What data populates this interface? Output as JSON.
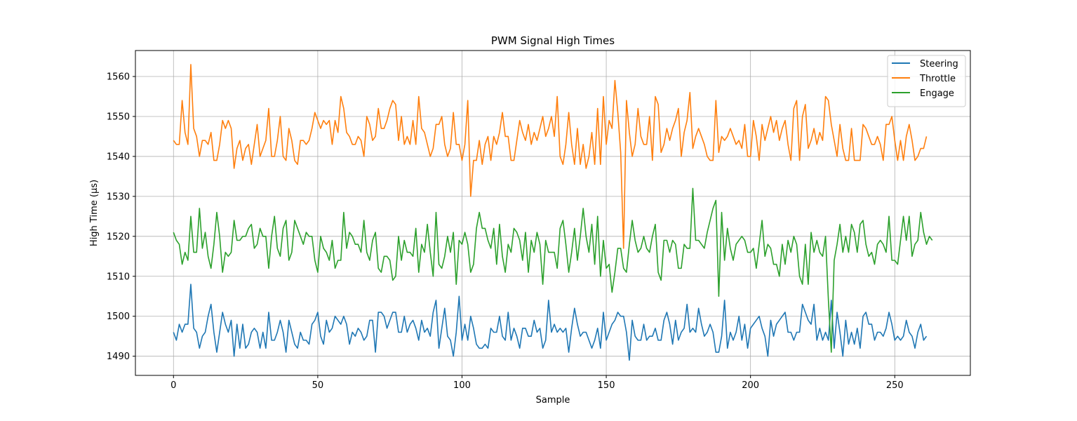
{
  "chart_data": {
    "type": "line",
    "title": "PWM Signal High Times",
    "xlabel": "Sample",
    "ylabel": "High Time (µs)",
    "xlim": [
      -13.2,
      276.2
    ],
    "ylim": [
      1485.2,
      1566.5
    ],
    "x_ticks": [
      0,
      50,
      100,
      150,
      200,
      250
    ],
    "y_ticks": [
      1490,
      1500,
      1510,
      1520,
      1530,
      1540,
      1550,
      1560
    ],
    "grid": true,
    "legend_position": "top-right",
    "series": [
      {
        "name": "Steering",
        "color": "#1f77b4",
        "values": [
          1496,
          1494,
          1498,
          1496,
          1498,
          1498,
          1508,
          1497,
          1496,
          1492,
          1495,
          1496,
          1500,
          1503,
          1496,
          1491,
          1496,
          1501,
          1498,
          1496,
          1499,
          1490,
          1498,
          1492,
          1498,
          1492,
          1493,
          1496,
          1497,
          1496,
          1492,
          1496,
          1492,
          1501,
          1494,
          1494,
          1496,
          1499,
          1496,
          1491,
          1499,
          1496,
          1493,
          1492,
          1496,
          1494,
          1494,
          1493,
          1498,
          1499,
          1501,
          1495,
          1493,
          1499,
          1496,
          1497,
          1500,
          1499,
          1498,
          1500,
          1498,
          1493,
          1496,
          1495,
          1497,
          1496,
          1494,
          1495,
          1499,
          1499,
          1491,
          1501,
          1501,
          1500,
          1497,
          1499,
          1501,
          1501,
          1496,
          1496,
          1500,
          1496,
          1498,
          1499,
          1497,
          1494,
          1499,
          1496,
          1497,
          1495,
          1501,
          1504,
          1492,
          1497,
          1502,
          1495,
          1494,
          1490,
          1496,
          1505,
          1494,
          1498,
          1494,
          1500,
          1497,
          1493,
          1492,
          1492,
          1493,
          1492,
          1497,
          1496,
          1496,
          1500,
          1495,
          1494,
          1501,
          1494,
          1497,
          1495,
          1492,
          1497,
          1497,
          1495,
          1495,
          1499,
          1496,
          1497,
          1492,
          1494,
          1504,
          1496,
          1498,
          1496,
          1497,
          1496,
          1497,
          1491,
          1497,
          1502,
          1498,
          1495,
          1496,
          1496,
          1494,
          1492,
          1494,
          1497,
          1492,
          1501,
          1494,
          1496,
          1498,
          1499,
          1501,
          1500,
          1500,
          1496,
          1489,
          1499,
          1495,
          1494,
          1494,
          1498,
          1494,
          1495,
          1495,
          1497,
          1494,
          1494,
          1499,
          1501,
          1498,
          1493,
          1499,
          1494,
          1496,
          1497,
          1503,
          1496,
          1497,
          1496,
          1502,
          1498,
          1495,
          1496,
          1498,
          1496,
          1491,
          1491,
          1495,
          1504,
          1492,
          1496,
          1494,
          1496,
          1500,
          1494,
          1498,
          1492,
          1497,
          1498,
          1499,
          1500,
          1497,
          1495,
          1490,
          1499,
          1495,
          1498,
          1499,
          1500,
          1501,
          1496,
          1496,
          1494,
          1496,
          1496,
          1503,
          1501,
          1499,
          1498,
          1503,
          1494,
          1497,
          1494,
          1496,
          1494,
          1504,
          1492,
          1501,
          1496,
          1490,
          1499,
          1493,
          1496,
          1493,
          1497,
          1492,
          1500,
          1501,
          1498,
          1498,
          1494,
          1496,
          1496,
          1495,
          1497,
          1501,
          1498,
          1494,
          1495,
          1494,
          1495,
          1499,
          1496,
          1495,
          1492,
          1496,
          1498,
          1494,
          1495
        ]
      },
      {
        "name": "Throttle",
        "color": "#ff7f0e",
        "values": [
          1544,
          1543,
          1543,
          1554,
          1546,
          1543,
          1563,
          1547,
          1545,
          1540,
          1544,
          1544,
          1543,
          1546,
          1539,
          1539,
          1543,
          1549,
          1547,
          1549,
          1547,
          1537,
          1542,
          1544,
          1539,
          1542,
          1543,
          1538,
          1543,
          1548,
          1540,
          1542,
          1544,
          1552,
          1540,
          1540,
          1544,
          1550,
          1540,
          1539,
          1547,
          1544,
          1539,
          1538,
          1544,
          1544,
          1543,
          1544,
          1547,
          1551,
          1549,
          1547,
          1549,
          1548,
          1549,
          1543,
          1549,
          1546,
          1555,
          1552,
          1546,
          1545,
          1543,
          1543,
          1545,
          1544,
          1540,
          1550,
          1548,
          1544,
          1545,
          1552,
          1547,
          1547,
          1549,
          1552,
          1554,
          1553,
          1544,
          1550,
          1543,
          1545,
          1543,
          1549,
          1543,
          1555,
          1547,
          1546,
          1543,
          1540,
          1542,
          1548,
          1548,
          1550,
          1543,
          1540,
          1542,
          1551,
          1543,
          1543,
          1539,
          1543,
          1554,
          1530,
          1539,
          1539,
          1544,
          1538,
          1543,
          1545,
          1539,
          1545,
          1543,
          1546,
          1551,
          1545,
          1545,
          1539,
          1539,
          1544,
          1549,
          1546,
          1544,
          1548,
          1543,
          1546,
          1544,
          1547,
          1550,
          1545,
          1547,
          1550,
          1545,
          1555,
          1540,
          1538,
          1543,
          1551,
          1543,
          1538,
          1547,
          1538,
          1543,
          1537,
          1540,
          1546,
          1538,
          1552,
          1538,
          1555,
          1543,
          1549,
          1547,
          1559,
          1551,
          1541,
          1517,
          1554,
          1546,
          1540,
          1543,
          1552,
          1545,
          1543,
          1543,
          1550,
          1539,
          1555,
          1553,
          1541,
          1543,
          1547,
          1544,
          1547,
          1549,
          1552,
          1540,
          1546,
          1549,
          1556,
          1542,
          1545,
          1547,
          1545,
          1543,
          1540,
          1539,
          1539,
          1554,
          1541,
          1545,
          1544,
          1545,
          1547,
          1545,
          1543,
          1544,
          1542,
          1548,
          1540,
          1540,
          1549,
          1545,
          1539,
          1548,
          1544,
          1547,
          1550,
          1546,
          1549,
          1544,
          1547,
          1549,
          1543,
          1539,
          1552,
          1554,
          1539,
          1550,
          1553,
          1542,
          1544,
          1547,
          1543,
          1546,
          1544,
          1555,
          1554,
          1548,
          1544,
          1540,
          1548,
          1542,
          1539,
          1539,
          1547,
          1539,
          1539,
          1539,
          1548,
          1547,
          1545,
          1543,
          1543,
          1545,
          1543,
          1539,
          1548,
          1548,
          1550,
          1544,
          1539,
          1544,
          1539,
          1545,
          1548,
          1544,
          1539,
          1540,
          1542,
          1542,
          1545
        ]
      },
      {
        "name": "Engage",
        "color": "#2ca02c",
        "values": [
          1521,
          1519,
          1518,
          1513,
          1516,
          1514,
          1525,
          1516,
          1516,
          1527,
          1517,
          1521,
          1515,
          1512,
          1518,
          1526,
          1520,
          1511,
          1516,
          1515,
          1516,
          1524,
          1519,
          1519,
          1520,
          1520,
          1522,
          1523,
          1517,
          1518,
          1522,
          1520,
          1520,
          1512,
          1520,
          1525,
          1517,
          1515,
          1522,
          1524,
          1514,
          1516,
          1524,
          1522,
          1520,
          1518,
          1521,
          1520,
          1520,
          1514,
          1511,
          1520,
          1517,
          1516,
          1514,
          1519,
          1512,
          1514,
          1514,
          1526,
          1517,
          1521,
          1520,
          1518,
          1518,
          1516,
          1524,
          1516,
          1514,
          1519,
          1521,
          1512,
          1511,
          1515,
          1515,
          1514,
          1509,
          1510,
          1520,
          1514,
          1519,
          1516,
          1516,
          1515,
          1522,
          1511,
          1518,
          1516,
          1523,
          1516,
          1510,
          1526,
          1513,
          1512,
          1515,
          1520,
          1516,
          1521,
          1508,
          1519,
          1518,
          1521,
          1518,
          1511,
          1513,
          1522,
          1526,
          1522,
          1522,
          1519,
          1517,
          1522,
          1513,
          1523,
          1515,
          1511,
          1518,
          1516,
          1522,
          1521,
          1519,
          1514,
          1521,
          1511,
          1519,
          1516,
          1521,
          1518,
          1508,
          1519,
          1516,
          1516,
          1516,
          1512,
          1522,
          1524,
          1518,
          1511,
          1516,
          1522,
          1514,
          1520,
          1527,
          1520,
          1516,
          1523,
          1513,
          1525,
          1510,
          1519,
          1512,
          1513,
          1506,
          1511,
          1517,
          1517,
          1512,
          1511,
          1518,
          1524,
          1519,
          1516,
          1517,
          1520,
          1517,
          1516,
          1520,
          1523,
          1511,
          1509,
          1519,
          1519,
          1516,
          1519,
          1518,
          1512,
          1512,
          1518,
          1517,
          1517,
          1532,
          1519,
          1519,
          1518,
          1517,
          1521,
          1524,
          1527,
          1529,
          1505,
          1526,
          1514,
          1522,
          1517,
          1514,
          1518,
          1519,
          1520,
          1519,
          1516,
          1516,
          1517,
          1512,
          1518,
          1524,
          1515,
          1518,
          1517,
          1513,
          1513,
          1510,
          1518,
          1513,
          1519,
          1516,
          1520,
          1518,
          1510,
          1508,
          1518,
          1508,
          1521,
          1516,
          1519,
          1516,
          1515,
          1520,
          1504,
          1491,
          1514,
          1518,
          1523,
          1516,
          1520,
          1516,
          1523,
          1521,
          1516,
          1523,
          1524,
          1518,
          1515,
          1516,
          1513,
          1518,
          1519,
          1518,
          1516,
          1525,
          1514,
          1514,
          1513,
          1519,
          1525,
          1519,
          1525,
          1515,
          1518,
          1519,
          1526,
          1521,
          1518,
          1520,
          1519
        ]
      }
    ]
  }
}
